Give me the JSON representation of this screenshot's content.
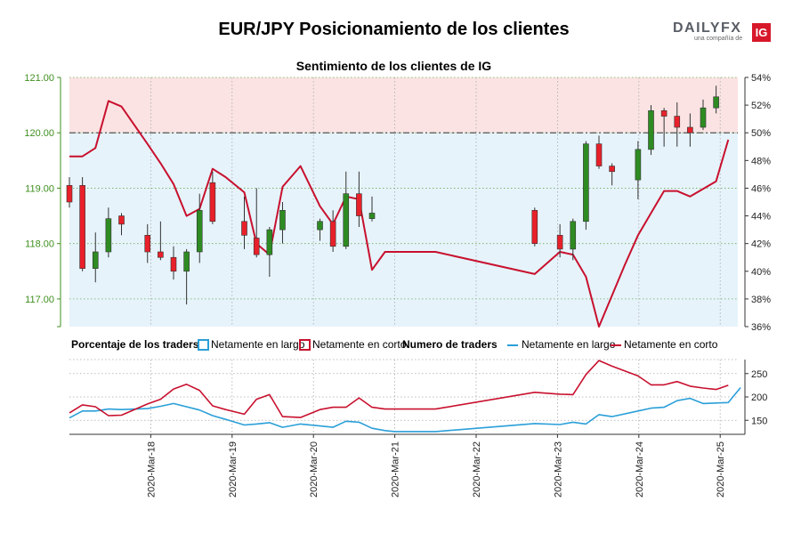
{
  "title": "EUR/JPY Posicionamiento de los clientes",
  "subtitle": "Sentimiento de los clientes de IG",
  "logo": {
    "brand": "DAILYFX",
    "tagline": "una compañía de",
    "badge": "IG"
  },
  "colors": {
    "long": "#2a9fd8",
    "short": "#c8102e",
    "bull_candle": "#2e8b22",
    "bear_candle": "#e8202a",
    "short_zone": "#fbe3e3",
    "long_zone": "#e6f3fb",
    "left_axis": "#3f8f1f"
  },
  "legend": {
    "pct_title": "Porcentaje de los traders",
    "pct_long": "Netamente en largo",
    "pct_short": "Netamente en corto",
    "num_title": "Numero de traders",
    "num_long": "Netamente en largo",
    "num_short": "Netamente en corto"
  },
  "chart_data": [
    {
      "type": "candlestick",
      "title": "Sentimiento de los clientes de IG",
      "left_axis": {
        "ticks": [
          "121.00",
          "120.00",
          "119.00",
          "118.00",
          "117.00"
        ],
        "ylim": [
          116.5,
          121.0
        ],
        "grid": true
      },
      "right_axis": {
        "ticks": [
          "54%",
          "52%",
          "50%",
          "48%",
          "46%",
          "44%",
          "42%",
          "40%",
          "38%",
          "36%"
        ],
        "ylim": [
          36,
          54
        ]
      },
      "reference_line": 50,
      "candles": [
        {
          "t": 0.0,
          "o": 119.05,
          "c": 118.75,
          "h": 119.2,
          "l": 118.65
        },
        {
          "t": 0.16,
          "o": 119.05,
          "c": 117.55,
          "h": 119.2,
          "l": 117.5
        },
        {
          "t": 0.32,
          "o": 117.55,
          "c": 117.85,
          "h": 118.2,
          "l": 117.3
        },
        {
          "t": 0.48,
          "o": 117.85,
          "c": 118.45,
          "h": 118.65,
          "l": 117.75
        },
        {
          "t": 0.64,
          "o": 118.5,
          "c": 118.35,
          "h": 118.55,
          "l": 118.15
        },
        {
          "t": 0.96,
          "o": 118.15,
          "c": 117.85,
          "h": 118.35,
          "l": 117.65
        },
        {
          "t": 1.12,
          "o": 117.85,
          "c": 117.75,
          "h": 118.4,
          "l": 117.7
        },
        {
          "t": 1.28,
          "o": 117.75,
          "c": 117.5,
          "h": 117.95,
          "l": 117.35
        },
        {
          "t": 1.44,
          "o": 117.5,
          "c": 117.85,
          "h": 117.9,
          "l": 116.9
        },
        {
          "t": 1.6,
          "o": 117.85,
          "c": 118.6,
          "h": 118.9,
          "l": 117.65
        },
        {
          "t": 1.76,
          "o": 119.1,
          "c": 118.4,
          "h": 119.3,
          "l": 118.35
        },
        {
          "t": 2.15,
          "o": 118.4,
          "c": 118.15,
          "h": 118.85,
          "l": 117.9
        },
        {
          "t": 2.3,
          "o": 118.1,
          "c": 117.8,
          "h": 119.0,
          "l": 117.75
        },
        {
          "t": 2.46,
          "o": 117.8,
          "c": 118.25,
          "h": 118.3,
          "l": 117.4
        },
        {
          "t": 2.62,
          "o": 118.25,
          "c": 118.6,
          "h": 118.75,
          "l": 118.0
        },
        {
          "t": 3.08,
          "o": 118.25,
          "c": 118.4,
          "h": 118.45,
          "l": 118.05
        },
        {
          "t": 3.24,
          "o": 118.4,
          "c": 117.95,
          "h": 118.6,
          "l": 117.85
        },
        {
          "t": 3.4,
          "o": 117.95,
          "c": 118.9,
          "h": 119.3,
          "l": 117.9
        },
        {
          "t": 3.56,
          "o": 118.9,
          "c": 118.5,
          "h": 119.3,
          "l": 118.3
        },
        {
          "t": 3.72,
          "o": 118.45,
          "c": 118.55,
          "h": 118.85,
          "l": 118.4
        },
        {
          "t": 5.72,
          "o": 118.6,
          "c": 118.0,
          "h": 118.65,
          "l": 117.95
        },
        {
          "t": 6.03,
          "o": 118.15,
          "c": 117.9,
          "h": 118.35,
          "l": 117.75
        },
        {
          "t": 6.19,
          "o": 117.9,
          "c": 118.4,
          "h": 118.45,
          "l": 117.7
        },
        {
          "t": 6.35,
          "o": 118.4,
          "c": 119.8,
          "h": 119.85,
          "l": 118.25
        },
        {
          "t": 6.51,
          "o": 119.8,
          "c": 119.4,
          "h": 119.95,
          "l": 119.35
        },
        {
          "t": 6.67,
          "o": 119.4,
          "c": 119.3,
          "h": 119.45,
          "l": 119.05
        },
        {
          "t": 6.99,
          "o": 119.15,
          "c": 119.7,
          "h": 119.85,
          "l": 118.8
        },
        {
          "t": 7.15,
          "o": 119.7,
          "c": 120.4,
          "h": 120.5,
          "l": 119.6
        },
        {
          "t": 7.31,
          "o": 120.4,
          "c": 120.3,
          "h": 120.45,
          "l": 119.75
        },
        {
          "t": 7.47,
          "o": 120.3,
          "c": 120.1,
          "h": 120.55,
          "l": 119.75
        },
        {
          "t": 7.63,
          "o": 120.1,
          "c": 120.0,
          "h": 120.35,
          "l": 119.75
        },
        {
          "t": 7.79,
          "o": 120.1,
          "c": 120.45,
          "h": 120.6,
          "l": 120.05
        },
        {
          "t": 7.95,
          "o": 120.45,
          "c": 120.65,
          "h": 120.85,
          "l": 120.35
        }
      ],
      "series": [
        {
          "name": "Netamente en corto",
          "values": [
            [
              0.0,
              48.3
            ],
            [
              0.16,
              48.3
            ],
            [
              0.32,
              48.9
            ],
            [
              0.48,
              52.3
            ],
            [
              0.64,
              51.9
            ],
            [
              0.96,
              49.2
            ],
            [
              1.12,
              47.8
            ],
            [
              1.28,
              46.3
            ],
            [
              1.44,
              44.0
            ],
            [
              1.6,
              44.5
            ],
            [
              1.76,
              47.4
            ],
            [
              1.92,
              46.8
            ],
            [
              2.15,
              45.7
            ],
            [
              2.3,
              42.0
            ],
            [
              2.46,
              41.2
            ],
            [
              2.62,
              46.1
            ],
            [
              2.84,
              47.6
            ],
            [
              3.08,
              44.7
            ],
            [
              3.24,
              43.4
            ],
            [
              3.4,
              45.4
            ],
            [
              3.56,
              45.2
            ],
            [
              3.72,
              40.1
            ],
            [
              3.88,
              41.4
            ],
            [
              4.5,
              41.4
            ],
            [
              5.72,
              39.8
            ],
            [
              6.03,
              41.4
            ],
            [
              6.19,
              41.2
            ],
            [
              6.35,
              39.6
            ],
            [
              6.51,
              36.0
            ],
            [
              6.83,
              40.5
            ],
            [
              6.99,
              42.6
            ],
            [
              7.15,
              44.2
            ],
            [
              7.31,
              45.8
            ],
            [
              7.47,
              45.8
            ],
            [
              7.63,
              45.4
            ],
            [
              7.95,
              46.5
            ],
            [
              8.1,
              49.5
            ]
          ]
        }
      ],
      "x_ticks": [
        "2020-Mar-18",
        "2020-Mar-19",
        "2020-Mar-20",
        "2020-Mar-21",
        "2020-Mar-22",
        "2020-Mar-23",
        "2020-Mar-24",
        "2020-Mar-25"
      ]
    },
    {
      "type": "line",
      "ylim": [
        120,
        280
      ],
      "y_ticks": [
        "250",
        "200",
        "150"
      ],
      "series": [
        {
          "name": "Netamente en largo",
          "values": [
            [
              0.0,
              155
            ],
            [
              0.16,
              170
            ],
            [
              0.32,
              170
            ],
            [
              0.48,
              174
            ],
            [
              0.64,
              173
            ],
            [
              0.96,
              175
            ],
            [
              1.12,
              180
            ],
            [
              1.28,
              186
            ],
            [
              1.6,
              172
            ],
            [
              1.76,
              160
            ],
            [
              1.92,
              152
            ],
            [
              2.15,
              140
            ],
            [
              2.3,
              142
            ],
            [
              2.46,
              145
            ],
            [
              2.62,
              135
            ],
            [
              2.84,
              142
            ],
            [
              3.08,
              138
            ],
            [
              3.24,
              135
            ],
            [
              3.4,
              148
            ],
            [
              3.56,
              146
            ],
            [
              3.72,
              133
            ],
            [
              3.88,
              128
            ],
            [
              4.0,
              126
            ],
            [
              4.5,
              126
            ],
            [
              5.72,
              143
            ],
            [
              6.03,
              141
            ],
            [
              6.19,
              146
            ],
            [
              6.35,
              142
            ],
            [
              6.51,
              162
            ],
            [
              6.67,
              158
            ],
            [
              6.99,
              170
            ],
            [
              7.15,
              176
            ],
            [
              7.31,
              178
            ],
            [
              7.47,
              192
            ],
            [
              7.63,
              197
            ],
            [
              7.79,
              186
            ],
            [
              7.95,
              187
            ],
            [
              8.1,
              188
            ],
            [
              8.25,
              220
            ]
          ]
        },
        {
          "name": "Netamente en corto",
          "values": [
            [
              0.0,
              166
            ],
            [
              0.16,
              183
            ],
            [
              0.32,
              179
            ],
            [
              0.48,
              160
            ],
            [
              0.64,
              161
            ],
            [
              0.96,
              185
            ],
            [
              1.12,
              195
            ],
            [
              1.28,
              217
            ],
            [
              1.44,
              227
            ],
            [
              1.6,
              214
            ],
            [
              1.76,
              181
            ],
            [
              1.92,
              173
            ],
            [
              2.15,
              163
            ],
            [
              2.3,
              195
            ],
            [
              2.46,
              205
            ],
            [
              2.62,
              158
            ],
            [
              2.84,
              156
            ],
            [
              3.08,
              173
            ],
            [
              3.24,
              178
            ],
            [
              3.4,
              178
            ],
            [
              3.56,
              198
            ],
            [
              3.72,
              178
            ],
            [
              3.88,
              174
            ],
            [
              4.5,
              174
            ],
            [
              5.72,
              210
            ],
            [
              6.03,
              206
            ],
            [
              6.19,
              205
            ],
            [
              6.35,
              248
            ],
            [
              6.51,
              278
            ],
            [
              6.67,
              266
            ],
            [
              6.99,
              245
            ],
            [
              7.15,
              226
            ],
            [
              7.31,
              226
            ],
            [
              7.47,
              233
            ],
            [
              7.63,
              223
            ],
            [
              7.79,
              219
            ],
            [
              7.95,
              216
            ],
            [
              8.1,
              225
            ]
          ]
        }
      ]
    }
  ]
}
